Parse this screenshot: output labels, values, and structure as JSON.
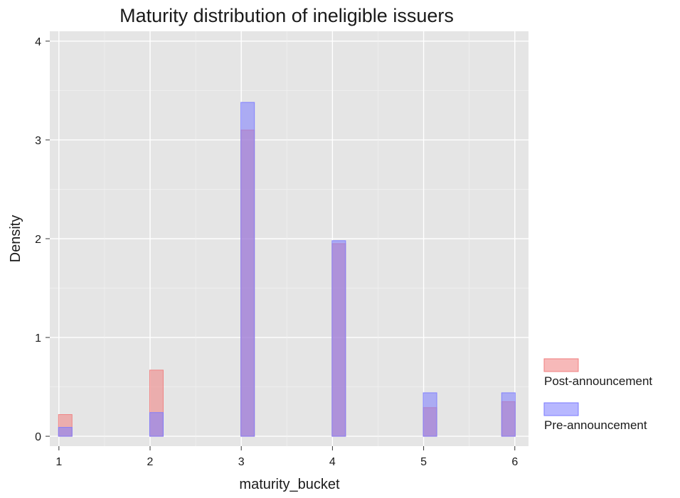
{
  "chart_data": {
    "type": "bar",
    "title": "Maturity distribution of ineligible issuers",
    "xlabel": "maturity_bucket",
    "ylabel": "Density",
    "xlim": [
      0.9,
      6.15
    ],
    "ylim": [
      -0.1,
      4.1
    ],
    "xticks": [
      1,
      2,
      3,
      4,
      5,
      6
    ],
    "yticks": [
      0,
      1,
      2,
      3,
      4
    ],
    "grid": true,
    "legend_position": "right",
    "series": [
      {
        "name": "Post-announcement",
        "color": "#f08080",
        "x": [
          1.07,
          2.07,
          3.07,
          4.07,
          5.07,
          5.93
        ],
        "values": [
          0.22,
          0.67,
          3.1,
          1.95,
          0.29,
          0.35
        ]
      },
      {
        "name": "Pre-announcement",
        "color": "#7b7bff",
        "x": [
          1.07,
          2.07,
          3.07,
          4.07,
          5.07,
          5.93
        ],
        "values": [
          0.09,
          0.24,
          3.38,
          1.98,
          0.44,
          0.44
        ]
      }
    ]
  }
}
